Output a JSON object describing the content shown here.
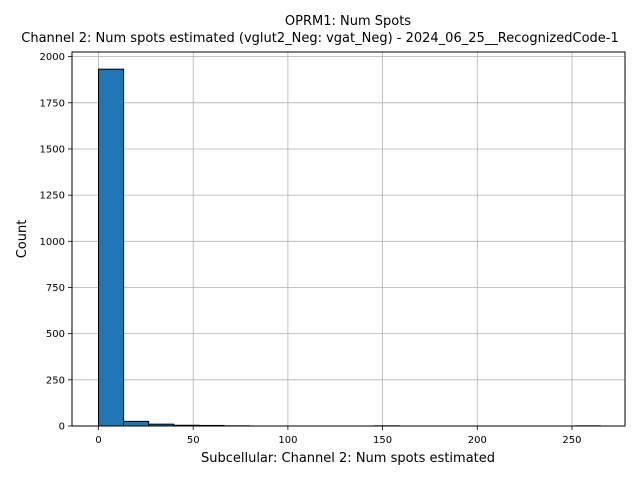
{
  "chart_data": {
    "type": "bar",
    "title": "OPRM1: Num Spots",
    "subtitle": "Channel 2: Num spots estimated (vglut2_Neg: vgat_Neg) - 2024_06_25__RecognizedCode-1",
    "xlabel": "Subcellular: Channel 2: Num spots estimated",
    "ylabel": "Count",
    "xlim": [
      -14,
      278
    ],
    "ylim": [
      0,
      2025
    ],
    "xticks": [
      0,
      50,
      100,
      150,
      200,
      250
    ],
    "yticks": [
      0,
      250,
      500,
      750,
      1000,
      1250,
      1500,
      1750,
      2000
    ],
    "grid": true,
    "bar_color": "#1f77b4",
    "edge_color": "#000000",
    "bins": [
      {
        "x0": 0,
        "x1": 13.25,
        "count": 1932
      },
      {
        "x0": 13.25,
        "x1": 26.5,
        "count": 25
      },
      {
        "x0": 26.5,
        "x1": 39.75,
        "count": 10
      },
      {
        "x0": 39.75,
        "x1": 53,
        "count": 4
      },
      {
        "x0": 53,
        "x1": 66.25,
        "count": 3
      },
      {
        "x0": 66.25,
        "x1": 79.5,
        "count": 1
      },
      {
        "x0": 79.5,
        "x1": 92.75,
        "count": 0
      },
      {
        "x0": 92.75,
        "x1": 106,
        "count": 0
      },
      {
        "x0": 106,
        "x1": 119.25,
        "count": 0
      },
      {
        "x0": 119.25,
        "x1": 132.5,
        "count": 0
      },
      {
        "x0": 132.5,
        "x1": 145.75,
        "count": 0
      },
      {
        "x0": 145.75,
        "x1": 159,
        "count": 1
      },
      {
        "x0": 159,
        "x1": 172.25,
        "count": 0
      },
      {
        "x0": 172.25,
        "x1": 185.5,
        "count": 0
      },
      {
        "x0": 185.5,
        "x1": 198.75,
        "count": 0
      },
      {
        "x0": 198.75,
        "x1": 212,
        "count": 0
      },
      {
        "x0": 212,
        "x1": 225.25,
        "count": 0
      },
      {
        "x0": 225.25,
        "x1": 238.5,
        "count": 0
      },
      {
        "x0": 238.5,
        "x1": 251.75,
        "count": 0
      },
      {
        "x0": 251.75,
        "x1": 265,
        "count": 1
      }
    ]
  }
}
